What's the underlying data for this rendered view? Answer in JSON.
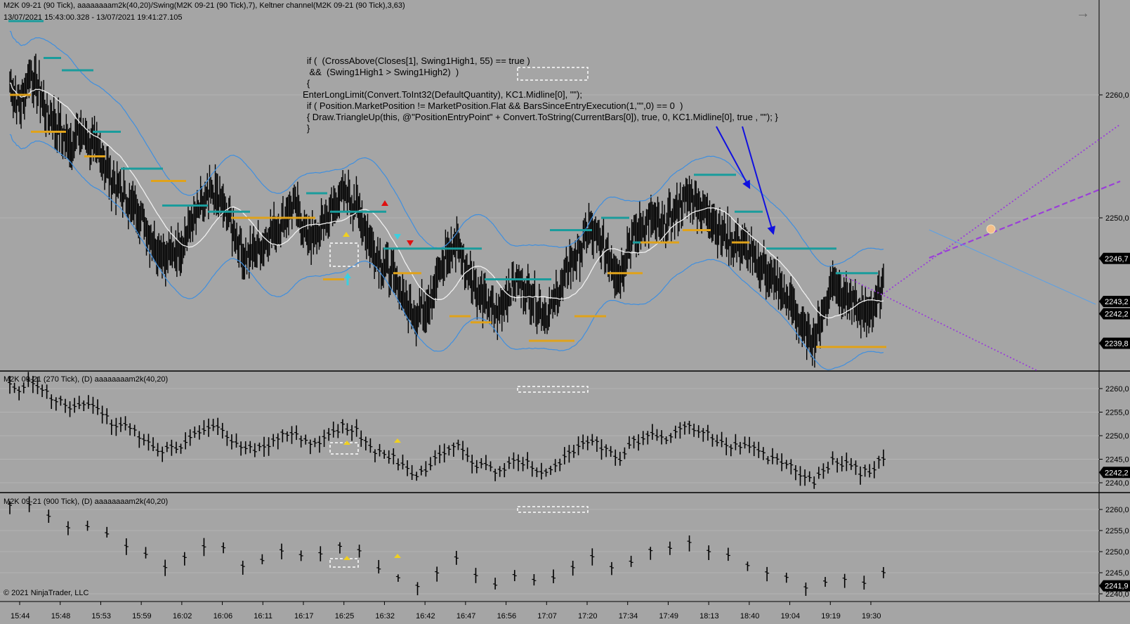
{
  "header": {
    "title": "M2K 09-21 (90 Tick), aaaaaaaam2k(40,20)/Swing(M2K 09-21 (90 Tick),7), Keltner channel(M2K 09-21 (90 Tick),3,63)",
    "range": "13/07/2021 15:43:00.328 - 13/07/2021 19:41:27.105"
  },
  "panels": [
    {
      "title": "M2K 09-21 (270 Tick), (D) aaaaaaaam2k(40,20)"
    },
    {
      "title": "M2K 09-21 (900 Tick), (D) aaaaaaaam2k(40,20)"
    }
  ],
  "code_lines": [
    "   if (  (CrossAbove(Closes[1], Swing1High1, 55) == true )",
    "    &&  (Swing1High1 > Swing1High2)  )",
    "   {",
    "EnterLongLimit(Convert.ToInt32(DefaultQuantity), KC1.Midline[0], \"\");",
    "   if ( Position.MarketPosition != MarketPosition.Flat && BarsSinceEntryExecution(1,\"\",0) == 0  )",
    "   { Draw.TriangleUp(this, @\"PositionEntryPoint\" + Convert.ToString(CurrentBars[0]), true, 0, KC1.Midline[0], true , \"\"); }",
    "   }"
  ],
  "copyright": "© 2021 NinjaTrader, LLC",
  "colors": {
    "background": "#a5a5a5",
    "bars": "#000000",
    "keltner_band": "#3f8fdf",
    "keltner_mid": "#f0f0f0",
    "swing_high": "#1a9c9c",
    "swing_low": "#e0a21a",
    "annotation_arrow": "#1010e0",
    "trendline": "#9a3fd8",
    "price_tag": "#000000"
  },
  "chart_data": {
    "type": "ohlc",
    "x_ticks": [
      "15:44",
      "15:48",
      "15:53",
      "15:59",
      "16:02",
      "16:06",
      "16:11",
      "16:17",
      "16:25",
      "16:32",
      "16:42",
      "16:47",
      "16:56",
      "17:07",
      "17:20",
      "17:34",
      "17:49",
      "18:13",
      "18:40",
      "19:04",
      "19:19",
      "19:30"
    ],
    "panels": [
      {
        "name": "main",
        "y_ticks": [
          "2260,0",
          "2250,0"
        ],
        "ylim": [
          2238,
          2267
        ],
        "price_tags": [
          "2246,7",
          "2243,2",
          "2242,2",
          "2239,8"
        ],
        "close_path": [
          2261,
          2259,
          2262,
          2260,
          2258,
          2257,
          2256,
          2257,
          2256,
          2255,
          2253,
          2252,
          2251,
          2250,
          2248,
          2247,
          2247,
          2248,
          2250,
          2251,
          2252,
          2251,
          2249,
          2247,
          2247,
          2248,
          2249,
          2250,
          2251,
          2249,
          2248,
          2250,
          2251,
          2252,
          2251,
          2249,
          2247,
          2246,
          2245,
          2243,
          2242,
          2243,
          2245,
          2247,
          2248,
          2246,
          2244,
          2243,
          2242,
          2244,
          2245,
          2244,
          2243,
          2242,
          2244,
          2246,
          2247,
          2249,
          2248,
          2247,
          2245,
          2248,
          2249,
          2250,
          2249,
          2250,
          2251,
          2252,
          2251,
          2250,
          2249,
          2248,
          2248,
          2247,
          2246,
          2245,
          2244,
          2243,
          2241,
          2240,
          2242,
          2245,
          2244,
          2243,
          2242,
          2243,
          2245
        ],
        "swing_highs": [
          "2266,0",
          "2263,0",
          "2262,0",
          "2257,0",
          "2254,0",
          "2251,0",
          "2250,5",
          "2250,0",
          "2252,0",
          "2250,5",
          "2247,5",
          "2245,0",
          "2249,0",
          "2250,0",
          "2248,0",
          "2253,5",
          "2250,5",
          "2247,5",
          "2245,5"
        ],
        "swing_lows": [
          "2260,0",
          "2257,0",
          "2255,0",
          "2253,0",
          "2250,0",
          "2245,0",
          "2245,5",
          "2242,0",
          "2241,5",
          "2240,0",
          "2242,0",
          "2245,5",
          "2248,0",
          "2249,0",
          "2248,0",
          "2239,5"
        ]
      },
      {
        "name": "270 Tick",
        "y_ticks": [
          "2260,0",
          "2255,0",
          "2250,0",
          "2245,0",
          "2240,0"
        ],
        "ylim": [
          2238,
          2263
        ],
        "price_tags": [
          "2242,2"
        ]
      },
      {
        "name": "900 Tick",
        "y_ticks": [
          "2260,0",
          "2255,0",
          "2250,0",
          "2245,0",
          "2240,0"
        ],
        "ylim": [
          2238,
          2263
        ],
        "price_tags": [
          "2241,9"
        ]
      }
    ]
  }
}
